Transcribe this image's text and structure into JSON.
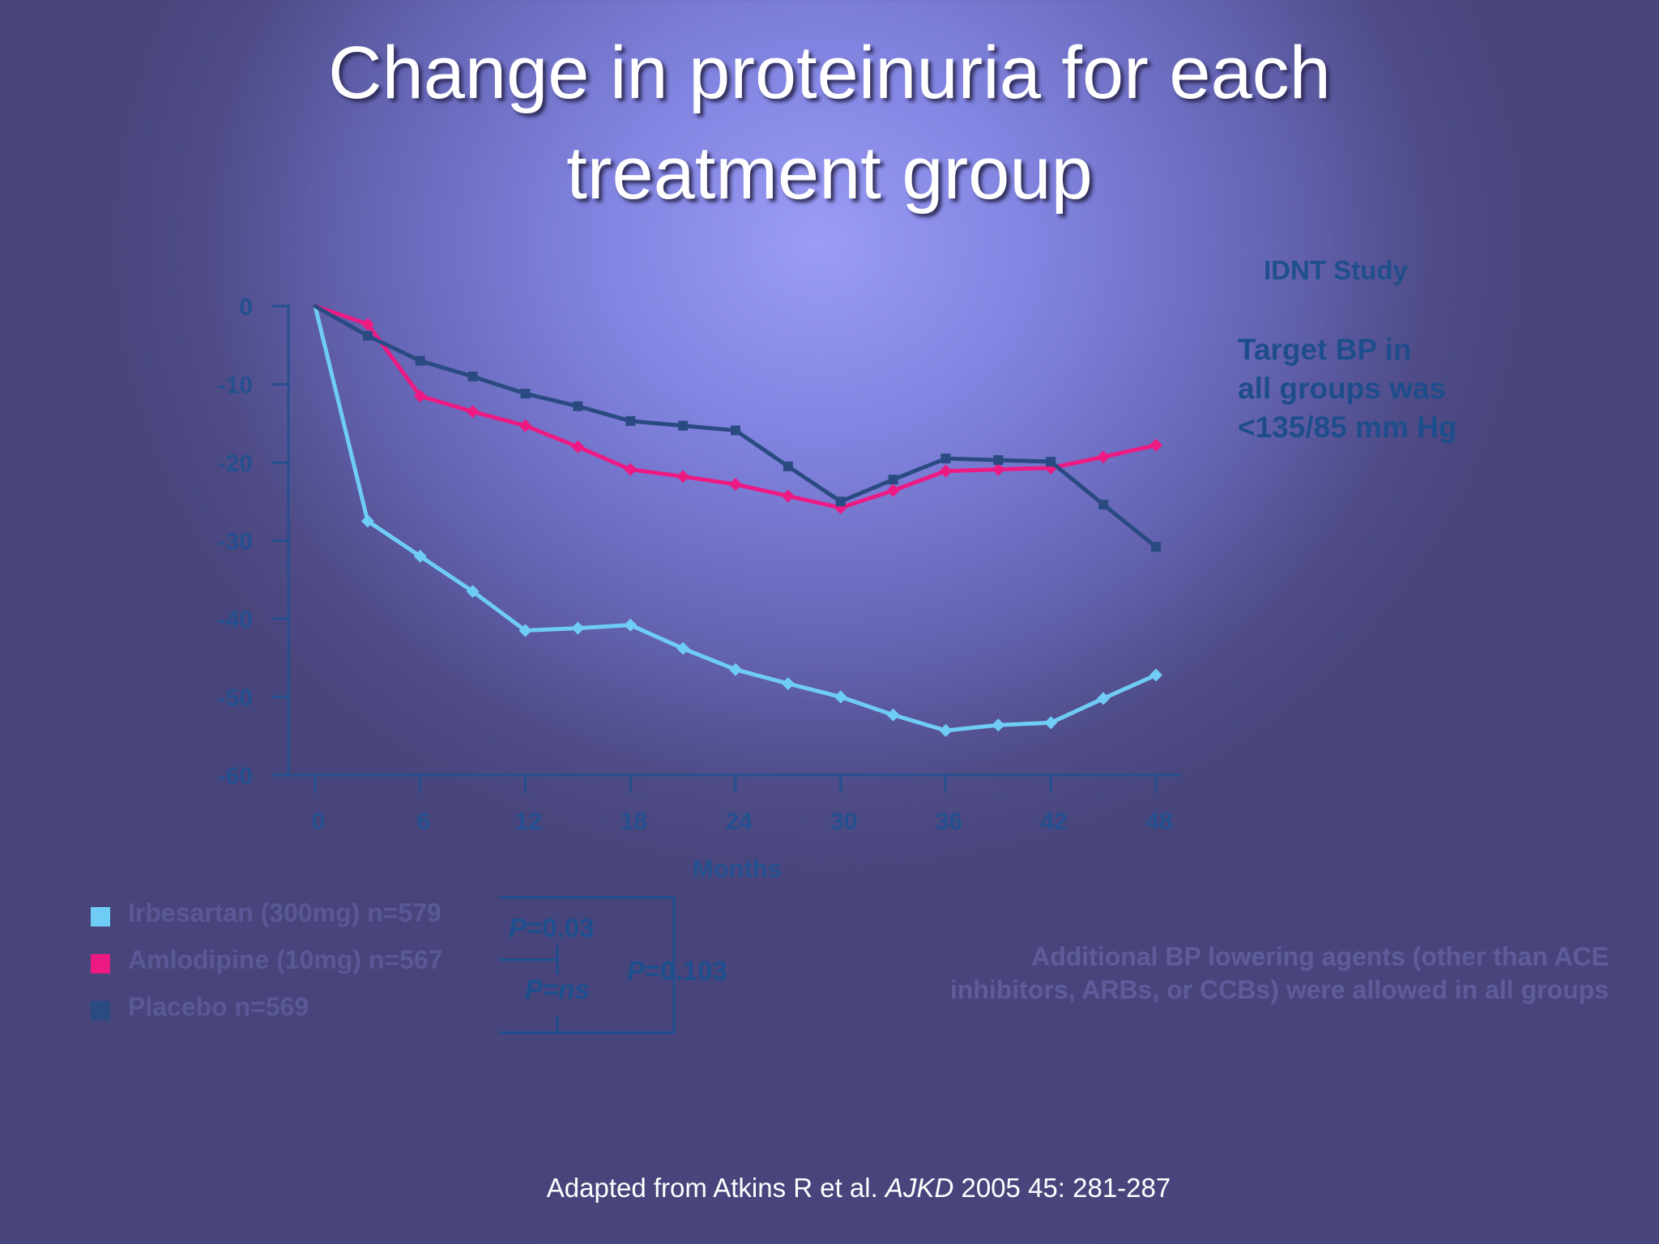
{
  "slide": {
    "title_line1": "Change in proteinuria for each",
    "title_line2": "treatment group",
    "study_label": "IDNT Study",
    "target_note": "Target BP in\nall groups was\n<135/85 mm Hg",
    "additional_note": "Additional BP lowering agents (other than ACE\ninhibitors, ARBs, or CCBs) were allowed in all groups",
    "citation_prefix": "Adapted from Atkins R et al. ",
    "citation_journal": "AJKD",
    "citation_suffix": "  2005 45: 281-287"
  },
  "stats": {
    "p1": "=0.03",
    "p2": "=ns",
    "p3": "=0.103",
    "p_letter": "P"
  },
  "legend": [
    {
      "label": "Irbesartan (300mg) n=579",
      "color": "#6fcdf5"
    },
    {
      "label": "Amlodipine (10mg) n=567",
      "color": "#ee1a83"
    },
    {
      "label": "Placebo n=569",
      "color": "#2a4a82"
    }
  ],
  "chart_data": {
    "type": "line",
    "xlabel": "Months",
    "ylabel": "",
    "xlim": [
      0,
      48
    ],
    "ylim": [
      -60,
      0
    ],
    "x_ticks": [
      0,
      6,
      12,
      18,
      24,
      30,
      36,
      42,
      48
    ],
    "y_ticks": [
      0,
      -10,
      -20,
      -30,
      -40,
      -50,
      -60
    ],
    "grid": false,
    "legend_position": "bottom-left",
    "series": [
      {
        "name": "Irbesartan (300mg) n=579",
        "color": "#6fcdf5",
        "marker": "diamond",
        "x": [
          0,
          3,
          6,
          9,
          12,
          15,
          18,
          21,
          24,
          27,
          30,
          33,
          36,
          39,
          42,
          45,
          48
        ],
        "y": [
          0,
          -27.5,
          -32,
          -36.5,
          -41.5,
          -41.2,
          -40.8,
          -43.8,
          -46.5,
          -48.3,
          -50,
          -52.3,
          -54.3,
          -53.6,
          -53.3,
          -50.2,
          -47.2
        ]
      },
      {
        "name": "Amlodipine (10mg) n=567",
        "color": "#ee1a83",
        "marker": "diamond",
        "x": [
          0,
          3,
          6,
          9,
          12,
          15,
          18,
          21,
          24,
          27,
          30,
          33,
          36,
          39,
          42,
          45,
          48
        ],
        "y": [
          0,
          -2.3,
          -11.5,
          -13.5,
          -15.3,
          -18,
          -20.9,
          -21.8,
          -22.8,
          -24.3,
          -25.8,
          -23.6,
          -21.1,
          -20.9,
          -20.7,
          -19.3,
          -17.8
        ]
      },
      {
        "name": "Placebo n=569",
        "color": "#2a4a82",
        "marker": "square",
        "x": [
          0,
          3,
          6,
          9,
          12,
          15,
          18,
          21,
          24,
          27,
          30,
          33,
          36,
          39,
          42,
          45,
          48
        ],
        "y": [
          0,
          -3.8,
          -7,
          -9,
          -11.2,
          -12.8,
          -14.7,
          -15.3,
          -15.9,
          -20.5,
          -25,
          -22.2,
          -19.5,
          -19.7,
          -19.9,
          -25.4,
          -30.8
        ]
      }
    ]
  }
}
